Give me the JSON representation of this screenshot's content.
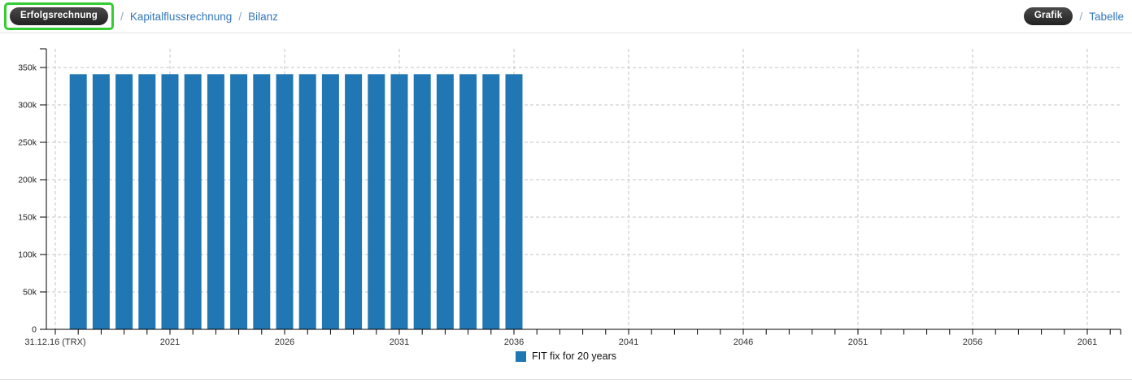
{
  "header": {
    "left": {
      "active_label": "Erfolgsrechnung",
      "separator": "/",
      "links": [
        "Kapitalflussrechnung",
        "Bilanz"
      ]
    },
    "right": {
      "active_label": "Grafik",
      "separator": "/",
      "links": [
        "Tabelle"
      ]
    }
  },
  "colors": {
    "bar_blue": "#2077b4",
    "link_blue": "#3377bb",
    "highlight_green": "#33cc33",
    "pill_dark": "#333333",
    "grid_gray": "#c4c4c4",
    "axis_black": "#000000"
  },
  "chart_data": {
    "type": "bar",
    "title": "",
    "xlabel": "",
    "ylabel": "",
    "series": [
      {
        "name": "FIT fix for 20 years",
        "color": "#2077b4",
        "x": [
          2017,
          2018,
          2019,
          2020,
          2021,
          2022,
          2023,
          2024,
          2025,
          2026,
          2027,
          2028,
          2029,
          2030,
          2031,
          2032,
          2033,
          2034,
          2035,
          2036
        ],
        "values": [
          341000,
          341000,
          341000,
          341000,
          341000,
          341000,
          341000,
          341000,
          341000,
          341000,
          341000,
          341000,
          341000,
          341000,
          341000,
          341000,
          341000,
          341000,
          341000,
          341000
        ]
      }
    ],
    "x_axis": {
      "start_label": "31.12.16 (TRX)",
      "start_year": 2016,
      "end_year": 2062,
      "minor_tick_step": 1,
      "major_tick_years": [
        2021,
        2026,
        2031,
        2036,
        2041,
        2046,
        2051,
        2056,
        2061
      ]
    },
    "y_axis": {
      "min": 0,
      "max": 375000,
      "ticks": [
        {
          "value": 0,
          "label": "0"
        },
        {
          "value": 50000,
          "label": "50k"
        },
        {
          "value": 100000,
          "label": "100k"
        },
        {
          "value": 150000,
          "label": "150k"
        },
        {
          "value": 200000,
          "label": "200k"
        },
        {
          "value": 250000,
          "label": "250k"
        },
        {
          "value": 300000,
          "label": "300k"
        },
        {
          "value": 350000,
          "label": "350k"
        }
      ]
    },
    "grid": {
      "dashed": true,
      "horizontal": true,
      "vertical": true
    },
    "legend": {
      "label": "FIT fix for 20 years",
      "swatch_color": "#2077b4",
      "position": "bottom-center"
    }
  }
}
